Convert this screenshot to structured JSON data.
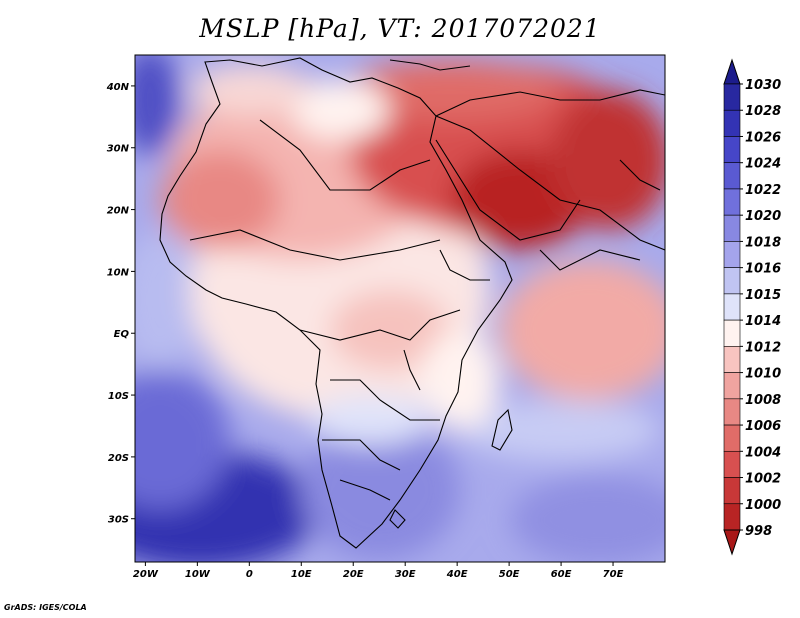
{
  "title": "MSLP [hPa], VT: 2017072021",
  "map": {
    "lon_range": [
      -22,
      80
    ],
    "lat_range": [
      -37,
      45
    ],
    "lon_ticks": [
      {
        "value": -20,
        "label": "20W"
      },
      {
        "value": -10,
        "label": "10W"
      },
      {
        "value": 0,
        "label": "0"
      },
      {
        "value": 10,
        "label": "10E"
      },
      {
        "value": 20,
        "label": "20E"
      },
      {
        "value": 30,
        "label": "30E"
      },
      {
        "value": 40,
        "label": "40E"
      },
      {
        "value": 50,
        "label": "50E"
      },
      {
        "value": 60,
        "label": "60E"
      },
      {
        "value": 70,
        "label": "70E"
      }
    ],
    "lat_ticks": [
      {
        "value": 40,
        "label": "40N"
      },
      {
        "value": 30,
        "label": "30N"
      },
      {
        "value": 20,
        "label": "20N"
      },
      {
        "value": 10,
        "label": "10N"
      },
      {
        "value": 0,
        "label": "EQ"
      },
      {
        "value": -10,
        "label": "10S"
      },
      {
        "value": -20,
        "label": "20S"
      },
      {
        "value": -30,
        "label": "30S"
      }
    ]
  },
  "colorbar": {
    "labels": [
      "1030",
      "1028",
      "1026",
      "1024",
      "1022",
      "1020",
      "1018",
      "1016",
      "1015",
      "1014",
      "1012",
      "1010",
      "1008",
      "1006",
      "1004",
      "1002",
      "1000",
      "998"
    ],
    "colors": [
      "#2828a0",
      "#3333b4",
      "#4646c8",
      "#5a5ad2",
      "#7070dc",
      "#8888e2",
      "#a4a4ec",
      "#c0c4f2",
      "#dfe3fa",
      "#fff3f0",
      "#f8c4c0",
      "#f0a4a0",
      "#e88884",
      "#e06c68",
      "#d85050",
      "#c83838",
      "#b82424"
    ],
    "top_arrow_color": "#1c1c8c",
    "bottom_arrow_color": "#a81818"
  },
  "credit": "GrADS: IGES/COLA"
}
